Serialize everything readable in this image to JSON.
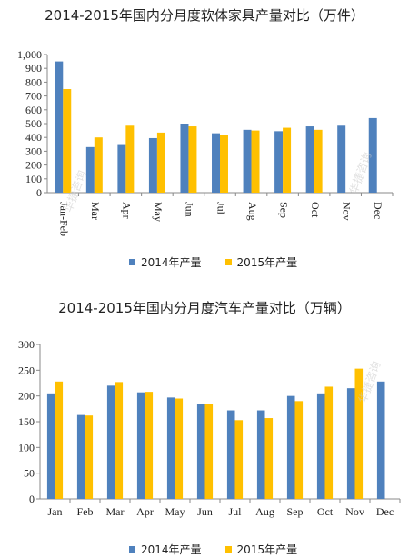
{
  "colors": {
    "series2014": "#4F81BD",
    "series2015": "#FFC000",
    "axis": "#888888"
  },
  "watermark": {
    "text": "华捷咨询",
    "subtext": "HJWORLD.COM"
  },
  "chart_data": [
    {
      "type": "bar",
      "title": "2014-2015年国内分月度软体家具产量对比（万件）",
      "categories": [
        "Jan-Feb",
        "Mar",
        "Apr",
        "May",
        "Jun",
        "Jul",
        "Aug",
        "Sep",
        "Oct",
        "Nov",
        "Dec"
      ],
      "series": [
        {
          "name": "2014年产量",
          "values": [
            950,
            330,
            345,
            395,
            500,
            430,
            455,
            445,
            480,
            485,
            540
          ]
        },
        {
          "name": "2015年产量",
          "values": [
            750,
            400,
            485,
            435,
            480,
            420,
            450,
            470,
            455,
            null,
            null
          ]
        }
      ],
      "ylim": [
        0,
        1000
      ],
      "yticks": [
        "0",
        "100",
        "200",
        "300",
        "400",
        "500",
        "600",
        "700",
        "800",
        "900",
        "1,000"
      ],
      "xlabel": "",
      "ylabel": "",
      "grid": false,
      "legend": "bottom"
    },
    {
      "type": "bar",
      "title": "2014-2015年国内分月度汽车产量对比（万辆）",
      "categories": [
        "Jan",
        "Feb",
        "Mar",
        "Apr",
        "May",
        "Jun",
        "Jul",
        "Aug",
        "Sep",
        "Oct",
        "Nov",
        "Dec"
      ],
      "series": [
        {
          "name": "2014年产量",
          "values": [
            205,
            163,
            220,
            207,
            197,
            185,
            172,
            172,
            200,
            205,
            215,
            228
          ]
        },
        {
          "name": "2015年产量",
          "values": [
            228,
            162,
            227,
            208,
            195,
            185,
            153,
            157,
            190,
            218,
            253,
            null
          ]
        }
      ],
      "ylim": [
        0,
        300
      ],
      "yticks": [
        "0",
        "50",
        "100",
        "150",
        "200",
        "250",
        "300"
      ],
      "xlabel": "",
      "ylabel": "",
      "grid": false,
      "legend": "bottom"
    }
  ]
}
